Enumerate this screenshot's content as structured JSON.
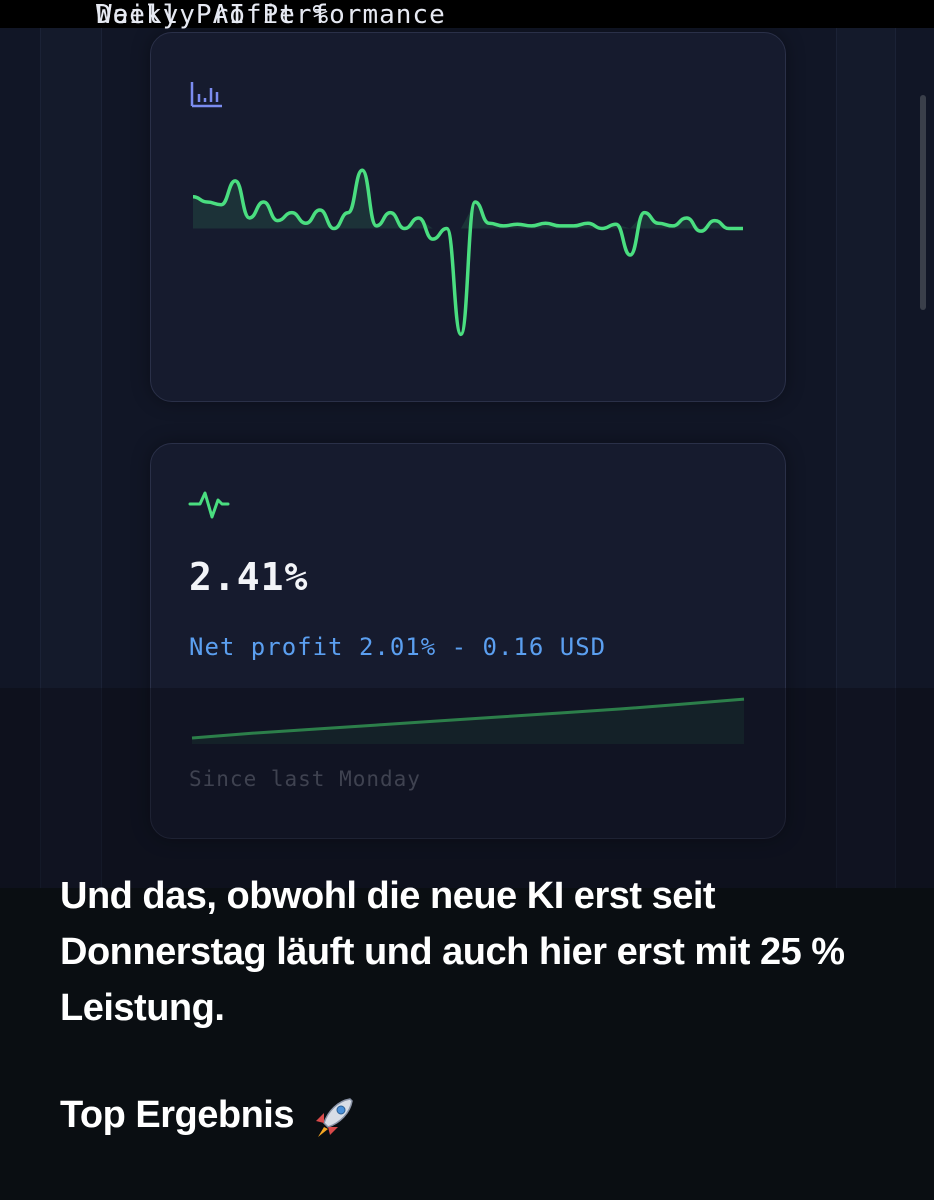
{
  "daily_card": {
    "title": "Daily Profit %",
    "icon": "bar-chart-icon"
  },
  "weekly_card": {
    "title": "Weekly AI Performance",
    "icon": "activity-icon",
    "value": "2.41%",
    "net_profit": "Net profit 2.01% - 0.16 USD",
    "since": "Since last Monday"
  },
  "caption": {
    "text": "Und das, obwohl die neue KI erst seit Donnerstag läuft und auch hier erst mit 25 % Leistung.",
    "footer": "Top Ergebnis",
    "footer_icon": "rocket-icon"
  },
  "colors": {
    "accent_green": "#4ade80",
    "accent_blue": "#5b9ff0",
    "card_bg": "#161b2e"
  },
  "chart_data": [
    {
      "type": "line",
      "title": "Daily Profit %",
      "x": [
        1,
        2,
        3,
        4,
        5,
        6,
        7,
        8,
        9,
        10,
        11,
        12,
        13,
        14,
        15,
        16,
        17,
        18,
        19,
        20,
        21,
        22,
        23,
        24,
        25,
        26,
        27,
        28,
        29,
        30,
        31,
        32,
        33,
        34,
        35,
        36,
        37,
        38,
        39,
        40
      ],
      "values": [
        0.6,
        0.5,
        0.45,
        0.9,
        0.2,
        0.5,
        0.15,
        0.3,
        0.1,
        0.35,
        0.0,
        0.3,
        1.1,
        0.05,
        0.3,
        0.0,
        0.2,
        -0.2,
        0.0,
        -2.0,
        0.5,
        0.1,
        0.05,
        0.08,
        0.05,
        0.1,
        0.05,
        0.05,
        0.1,
        0.0,
        0.08,
        -0.5,
        0.3,
        0.1,
        0.05,
        0.2,
        -0.05,
        0.15,
        0.0,
        0.0
      ],
      "fill_below_zero": false
    },
    {
      "type": "area",
      "title": "Weekly AI Performance",
      "x": [
        1,
        2,
        3,
        4,
        5,
        6,
        7,
        8,
        9,
        10
      ],
      "values": [
        0.0,
        0.3,
        0.55,
        0.8,
        1.05,
        1.3,
        1.55,
        1.8,
        2.1,
        2.41
      ]
    }
  ]
}
